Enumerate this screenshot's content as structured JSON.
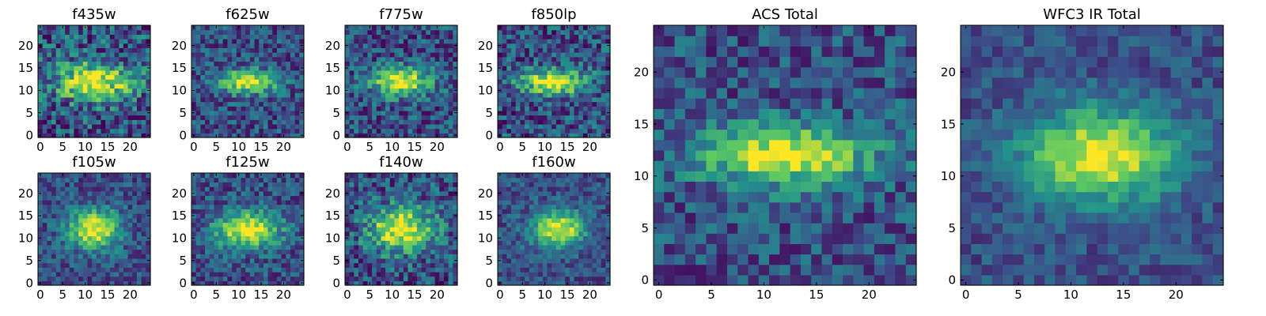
{
  "chart_data": [
    {
      "type": "heatmap",
      "title": "f435w",
      "xticks": [
        0,
        5,
        10,
        15,
        20
      ],
      "yticks": [
        0,
        5,
        10,
        15,
        20
      ],
      "xlim": [
        0,
        24
      ],
      "ylim": [
        0,
        24
      ],
      "grid_size": 25,
      "colormap": "viridis",
      "peak": [
        12,
        12
      ],
      "sigma_x": 6,
      "sigma_y": 3,
      "noise": 0.3,
      "seed": 11
    },
    {
      "type": "heatmap",
      "title": "f625w",
      "xticks": [
        0,
        5,
        10,
        15,
        20
      ],
      "yticks": [
        0,
        5,
        10,
        15,
        20
      ],
      "xlim": [
        0,
        24
      ],
      "ylim": [
        0,
        24
      ],
      "grid_size": 25,
      "colormap": "viridis",
      "peak": [
        12,
        12
      ],
      "sigma_x": 4.5,
      "sigma_y": 1.8,
      "noise": 0.22,
      "seed": 23
    },
    {
      "type": "heatmap",
      "title": "f775w",
      "xticks": [
        0,
        5,
        10,
        15,
        20
      ],
      "yticks": [
        0,
        5,
        10,
        15,
        20
      ],
      "xlim": [
        0,
        24
      ],
      "ylim": [
        0,
        24
      ],
      "grid_size": 25,
      "colormap": "viridis",
      "peak": [
        12,
        12
      ],
      "sigma_x": 4.5,
      "sigma_y": 2.2,
      "noise": 0.24,
      "seed": 37
    },
    {
      "type": "heatmap",
      "title": "f850lp",
      "xticks": [
        0,
        5,
        10,
        15,
        20
      ],
      "yticks": [
        0,
        5,
        10,
        15,
        20
      ],
      "xlim": [
        0,
        24
      ],
      "ylim": [
        0,
        24
      ],
      "grid_size": 25,
      "colormap": "viridis",
      "peak": [
        12,
        12
      ],
      "sigma_x": 5,
      "sigma_y": 2,
      "noise": 0.26,
      "seed": 41
    },
    {
      "type": "heatmap",
      "title": "f105w",
      "xticks": [
        0,
        5,
        10,
        15,
        20
      ],
      "yticks": [
        0,
        5,
        10,
        15,
        20
      ],
      "xlim": [
        0,
        24
      ],
      "ylim": [
        0,
        24
      ],
      "grid_size": 25,
      "colormap": "viridis",
      "peak": [
        12,
        12
      ],
      "sigma_x": 4,
      "sigma_y": 3,
      "noise": 0.18,
      "seed": 53
    },
    {
      "type": "heatmap",
      "title": "f125w",
      "xticks": [
        0,
        5,
        10,
        15,
        20
      ],
      "yticks": [
        0,
        5,
        10,
        15,
        20
      ],
      "xlim": [
        0,
        24
      ],
      "ylim": [
        0,
        24
      ],
      "grid_size": 25,
      "colormap": "viridis",
      "peak": [
        12,
        12
      ],
      "sigma_x": 5,
      "sigma_y": 2.8,
      "noise": 0.2,
      "seed": 67
    },
    {
      "type": "heatmap",
      "title": "f140w",
      "xticks": [
        0,
        5,
        10,
        15,
        20
      ],
      "yticks": [
        0,
        5,
        10,
        15,
        20
      ],
      "xlim": [
        0,
        24
      ],
      "ylim": [
        0,
        24
      ],
      "grid_size": 25,
      "colormap": "viridis",
      "peak": [
        12,
        12
      ],
      "sigma_x": 5,
      "sigma_y": 3.5,
      "noise": 0.26,
      "seed": 79
    },
    {
      "type": "heatmap",
      "title": "f160w",
      "xticks": [
        0,
        5,
        10,
        15,
        20
      ],
      "yticks": [
        0,
        5,
        10,
        15,
        20
      ],
      "xlim": [
        0,
        24
      ],
      "ylim": [
        0,
        24
      ],
      "grid_size": 25,
      "colormap": "viridis",
      "peak": [
        13,
        12
      ],
      "sigma_x": 4,
      "sigma_y": 2.8,
      "noise": 0.16,
      "seed": 83
    },
    {
      "type": "heatmap",
      "title": "ACS Total",
      "xticks": [
        0,
        5,
        10,
        15,
        20
      ],
      "yticks": [
        0,
        5,
        10,
        15,
        20
      ],
      "xlim": [
        0,
        24
      ],
      "ylim": [
        0,
        24
      ],
      "grid_size": 25,
      "colormap": "viridis",
      "peak": [
        12,
        12
      ],
      "sigma_x": 5.5,
      "sigma_y": 2,
      "noise": 0.2,
      "seed": 97
    },
    {
      "type": "heatmap",
      "title": "WFC3 IR Total",
      "xticks": [
        0,
        5,
        10,
        15,
        20
      ],
      "yticks": [
        0,
        5,
        10,
        15,
        20
      ],
      "xlim": [
        0,
        24
      ],
      "ylim": [
        0,
        24
      ],
      "grid_size": 25,
      "colormap": "viridis",
      "peak": [
        13,
        12
      ],
      "sigma_x": 5,
      "sigma_y": 3,
      "noise": 0.13,
      "seed": 101
    }
  ],
  "colormap_stops": [
    "#440154",
    "#3b528b",
    "#21918c",
    "#5ec962",
    "#fde725"
  ]
}
